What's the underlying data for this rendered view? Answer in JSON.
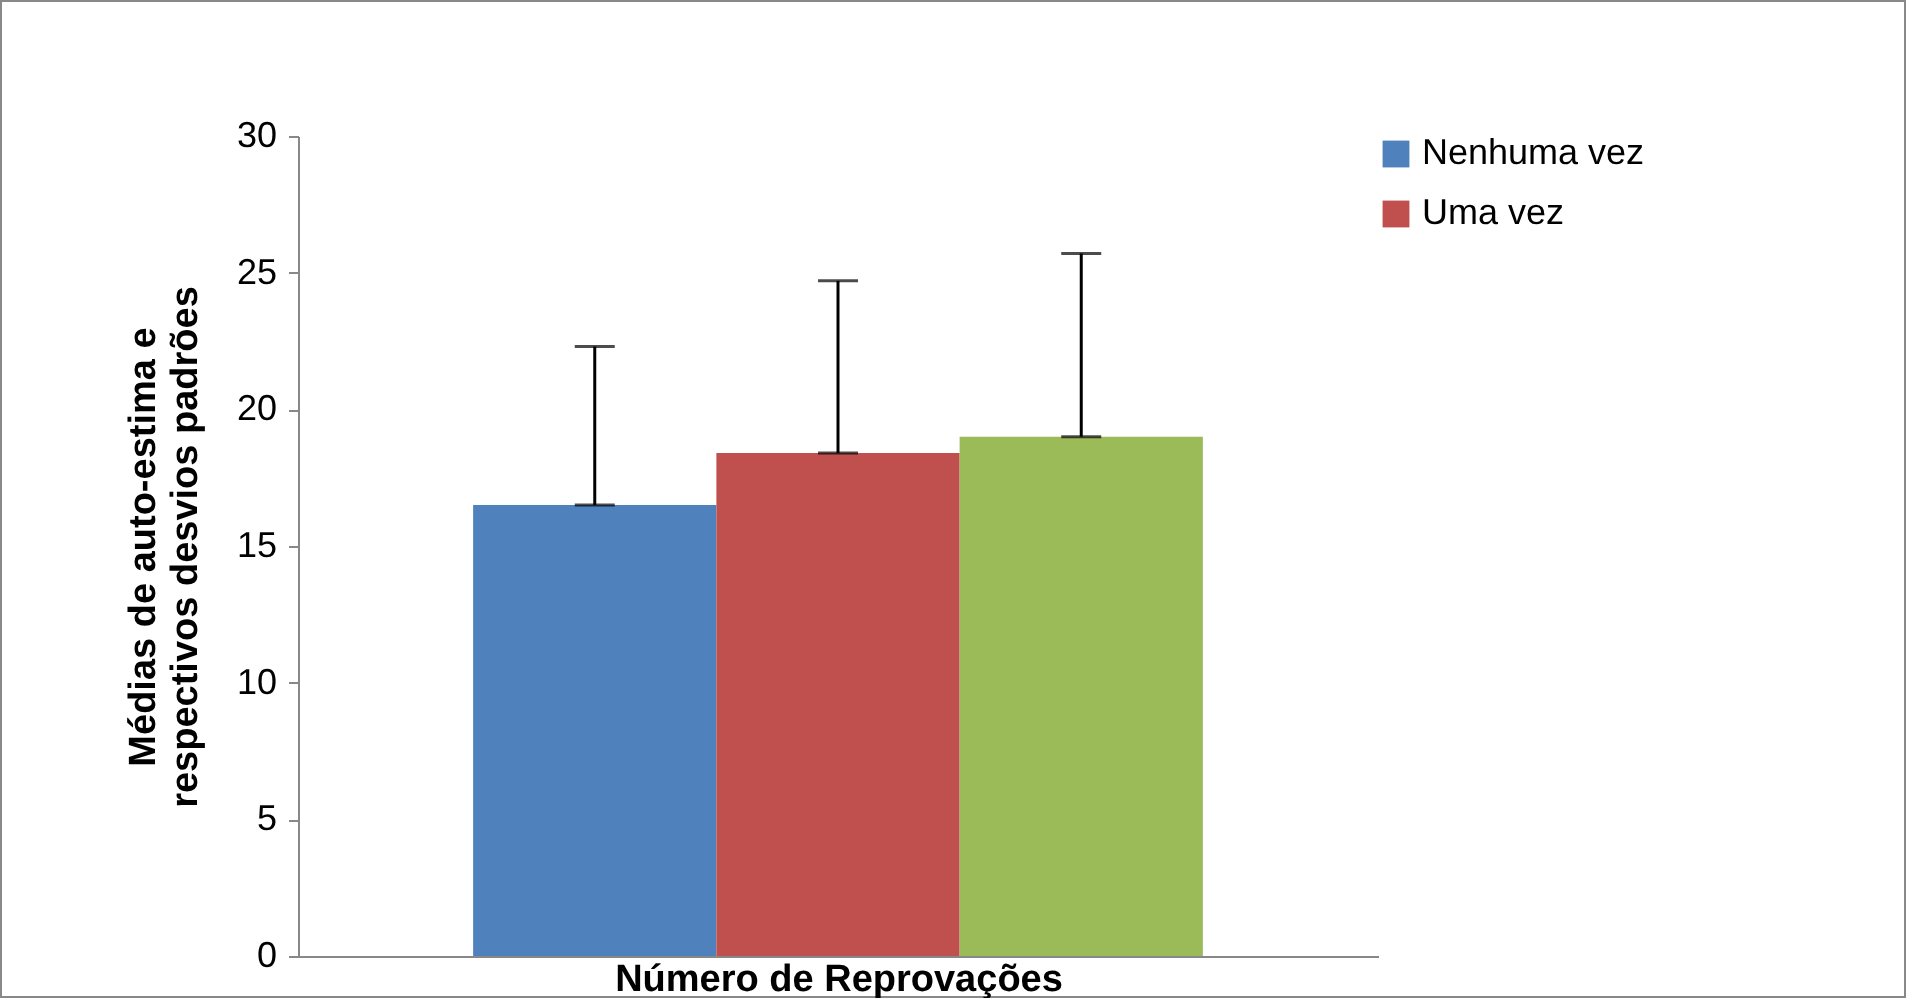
{
  "chart_data": {
    "type": "bar",
    "categories": [
      null
    ],
    "xlabel": "Número de Reprovações",
    "ylabel": "Médias de auto-estima e respectivos desvios padrões",
    "ylim": [
      0,
      30
    ],
    "yticks": [
      0,
      5,
      10,
      15,
      20,
      25,
      30
    ],
    "grid": false,
    "legend": "right",
    "series": [
      {
        "name": "Nenhuma vez",
        "color": "#4f81bd",
        "values": [
          16.5
        ],
        "errors": [
          [
            16.5,
            22.3
          ]
        ]
      },
      {
        "name": "Uma vez",
        "color": "#c0504d",
        "values": [
          18.4
        ],
        "errors": [
          [
            18.4,
            24.7
          ]
        ]
      },
      {
        "color": "#9bbb59",
        "values": [
          19.0
        ],
        "errors": [
          [
            19.0,
            25.7
          ]
        ]
      }
    ]
  }
}
